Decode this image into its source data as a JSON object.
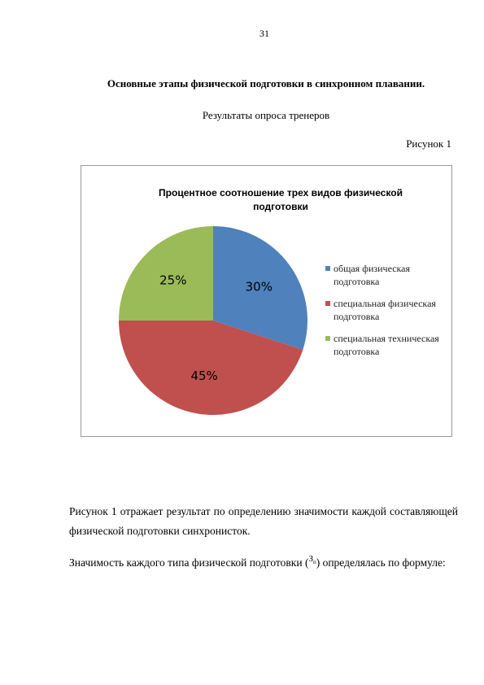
{
  "page_number": "31",
  "heading": "Основные этапы физической подготовки в синхронном плавании.",
  "subheading": "Результаты опроса тренеров",
  "figure_label": "Рисунок 1",
  "chart_data": {
    "type": "pie",
    "title": "Процентное соотношение трех видов физической подготовки",
    "categories": [
      "общая физическая подготовка",
      "специальная физическая подготовка",
      "специальная техническая подготовка"
    ],
    "values": [
      30,
      45,
      25
    ],
    "value_labels": [
      "30%",
      "45%",
      "25%"
    ],
    "colors": [
      "#4f81bd",
      "#c0504d",
      "#9bbb59"
    ],
    "legend": "right"
  },
  "paragraphs": [
    "Рисунок 1 отражает результат по определению значимости каждой составляющей физической подготовки синхронисток."
  ],
  "formula_sentence": {
    "before": "Значимость каждого типа физической подготовки",
    "open": "(",
    "symbol": "З",
    "subscript": "п",
    "close": ")",
    "after": "определялась по формуле:"
  }
}
